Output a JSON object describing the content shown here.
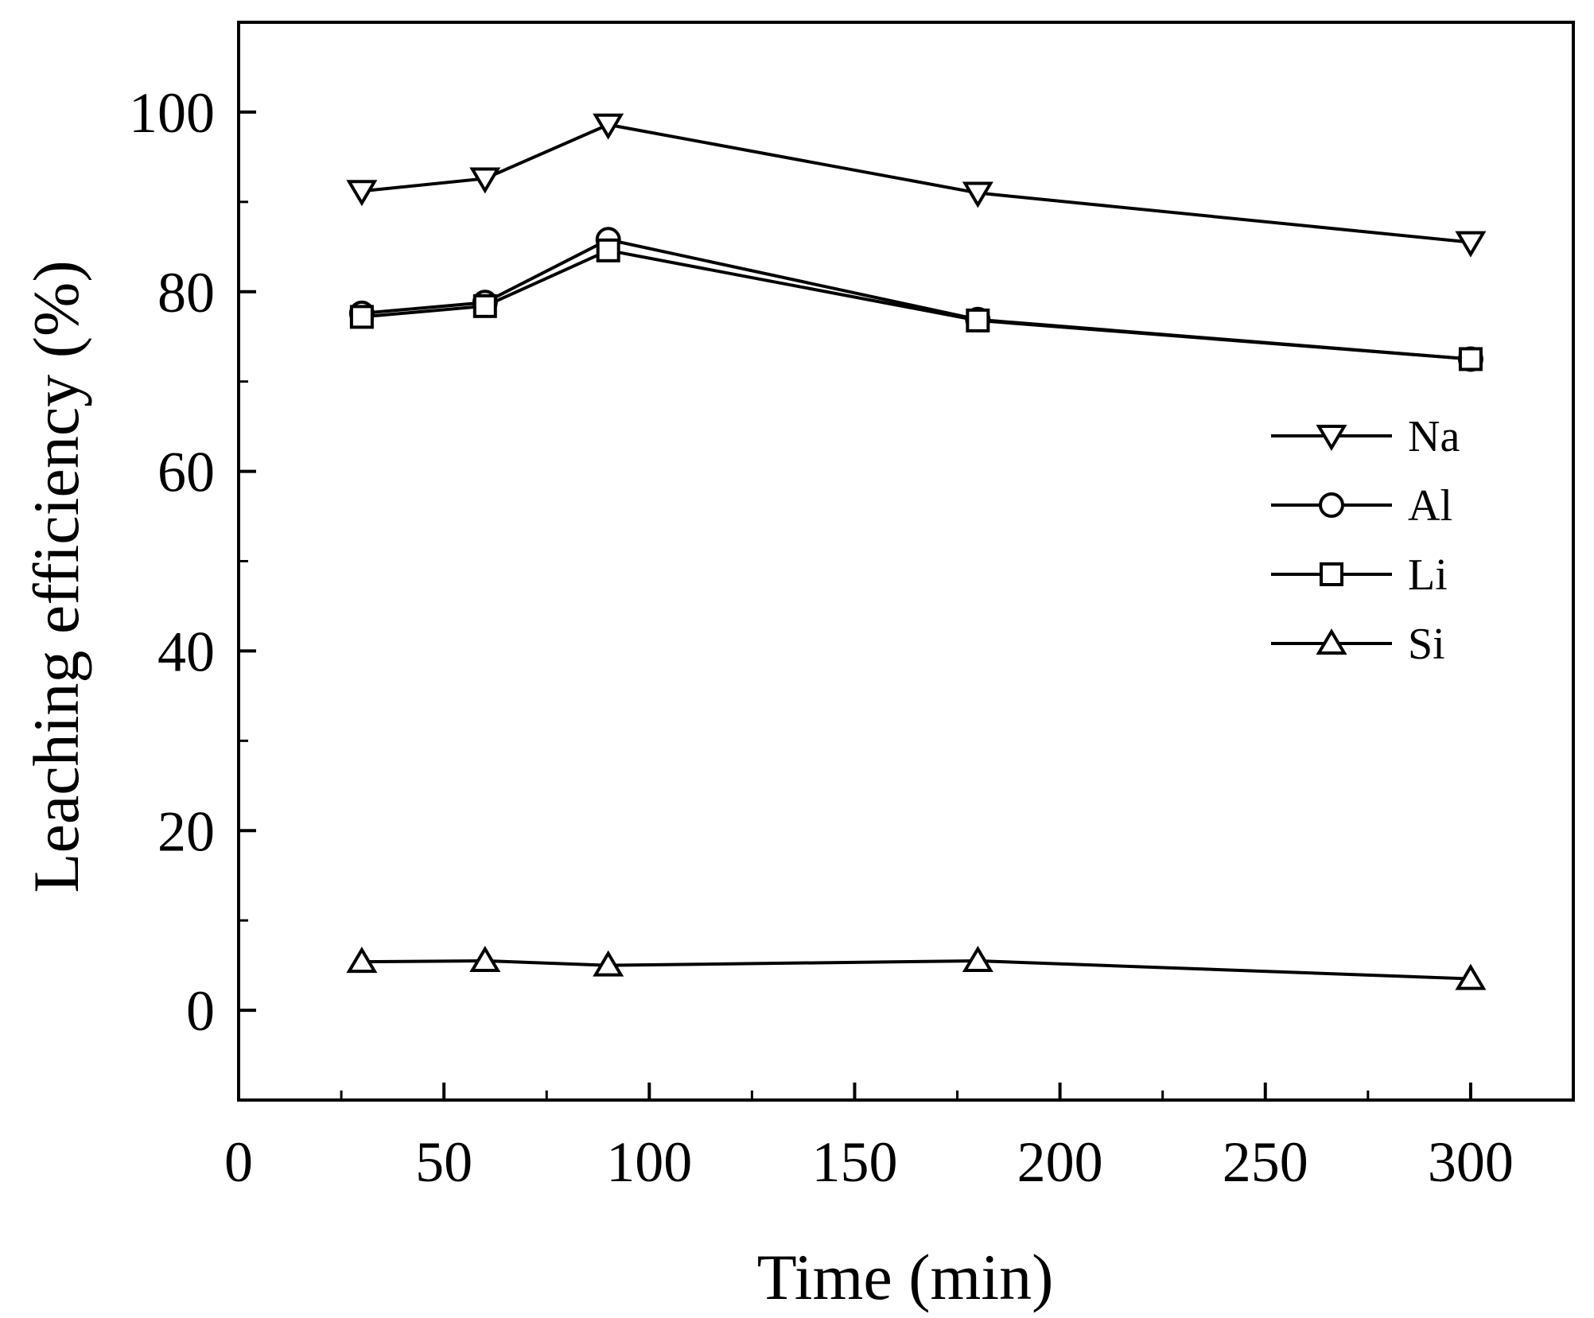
{
  "chart_data": {
    "type": "line",
    "title": "",
    "xlabel": "Time (min)",
    "ylabel": "Leaching efficiency (%)",
    "xlim": [
      0,
      325
    ],
    "ylim": [
      -10,
      110
    ],
    "xticks": [
      0,
      50,
      100,
      150,
      200,
      250,
      300
    ],
    "yticks": [
      0,
      20,
      40,
      60,
      80,
      100
    ],
    "grid": false,
    "legend_position": "right",
    "x": [
      30,
      60,
      90,
      180,
      300
    ],
    "series": [
      {
        "name": "Na",
        "marker": "triangle-down",
        "values": [
          91.2,
          92.6,
          98.6,
          91.0,
          85.5
        ]
      },
      {
        "name": "Al",
        "marker": "circle",
        "values": [
          77.6,
          78.8,
          85.8,
          76.9,
          72.5
        ]
      },
      {
        "name": "Li",
        "marker": "square",
        "values": [
          77.2,
          78.4,
          84.6,
          76.8,
          72.5
        ]
      },
      {
        "name": "Si",
        "marker": "triangle-up",
        "values": [
          5.4,
          5.5,
          5.0,
          5.5,
          3.5
        ]
      }
    ]
  }
}
